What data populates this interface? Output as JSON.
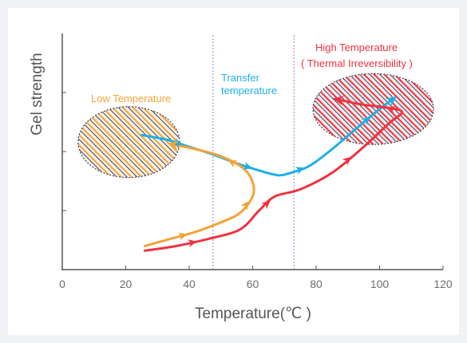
{
  "colors": {
    "low": "#f5a236",
    "transfer": "#1eb0e6",
    "high": "#ee3340",
    "axis": "#555555",
    "divider": "#8a8ad0",
    "hatch_dark": "#3a3a5a"
  },
  "chart_data": {
    "type": "line",
    "title": "",
    "xlabel": "Temperature(℃ )",
    "ylabel": "Gel strength",
    "xlim": [
      0,
      120
    ],
    "xticks": [
      "0",
      "20",
      "40",
      "60",
      "80",
      "100",
      "120"
    ],
    "y_tick_labels_shown": false,
    "grid": false,
    "legend": "none",
    "dividers_x": [
      47.5,
      73
    ],
    "annotations": {
      "low": "Low Temperature",
      "transfer": [
        "Transfer",
        "temperature"
      ],
      "high": [
        "High Temperature",
        "( Thermal Irreversibility )"
      ]
    },
    "series": [
      {
        "key": "transfer",
        "x": [
          25,
          33,
          40,
          47,
          55,
          62,
          68,
          72,
          78,
          85,
          92,
          100,
          104
        ],
        "y": [
          0.57,
          0.55,
          0.52,
          0.49,
          0.45,
          0.42,
          0.4,
          0.41,
          0.44,
          0.51,
          0.59,
          0.68,
          0.72
        ]
      },
      {
        "key": "low",
        "x": [
          26,
          34,
          42,
          50,
          56,
          60,
          60,
          57,
          50,
          42,
          35
        ],
        "y": [
          0.1,
          0.13,
          0.16,
          0.2,
          0.24,
          0.31,
          0.37,
          0.43,
          0.48,
          0.51,
          0.53
        ]
      },
      {
        "key": "high",
        "x": [
          26,
          36,
          46,
          56,
          62,
          67,
          75,
          85,
          95,
          103,
          107,
          100,
          94,
          87
        ],
        "y": [
          0.08,
          0.1,
          0.13,
          0.17,
          0.25,
          0.31,
          0.34,
          0.41,
          0.52,
          0.62,
          0.67,
          0.69,
          0.7,
          0.72
        ]
      }
    ],
    "regions": [
      {
        "key": "low",
        "x_center": 21,
        "y_center": 0.54,
        "rx": 16,
        "ry": 0.15
      },
      {
        "key": "high",
        "x_center": 98,
        "y_center": 0.68,
        "rx": 19,
        "ry": 0.15
      }
    ]
  }
}
